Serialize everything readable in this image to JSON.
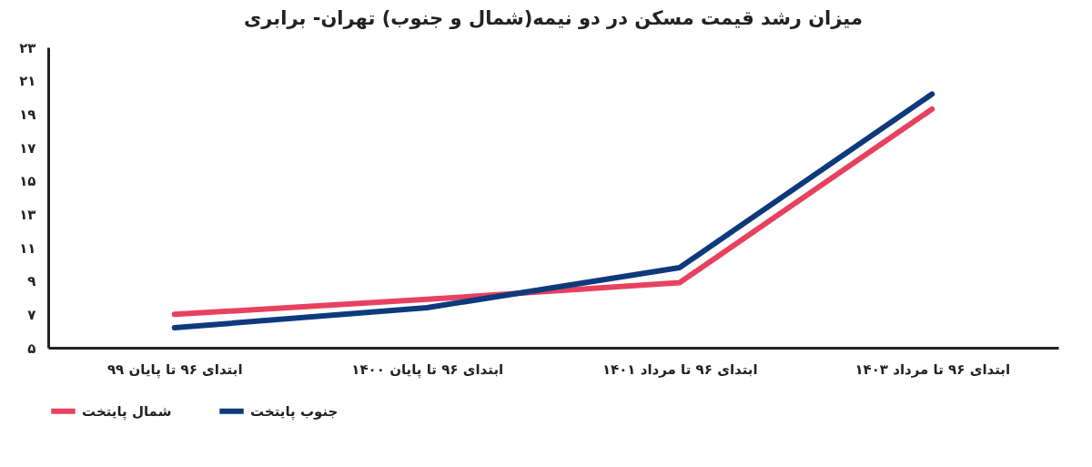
{
  "chart_data": {
    "type": "line",
    "title": "میزان رشد قیمت مسکن در دو نیمه(شمال و جنوب)  تهران- برابری",
    "categories": [
      "ابتدای ۹۶ تا پایان ۹۹",
      "ابتدای ۹۶ تا پایان ۱۴۰۰",
      "ابتدای ۹۶ تا مرداد ۱۴۰۱",
      "ابتدای ۹۶ تا مرداد ۱۴۰۳"
    ],
    "series": [
      {
        "name": "شمال پایتخت",
        "color": "#e8415f",
        "values": [
          7.0,
          7.9,
          8.9,
          19.3
        ]
      },
      {
        "name": "جنوب پایتخت",
        "color": "#0d3a7c",
        "values": [
          6.2,
          7.4,
          9.8,
          20.2
        ]
      }
    ],
    "ylim": [
      5,
      23
    ],
    "yticks": [
      {
        "value": 5,
        "label": "۵"
      },
      {
        "value": 7,
        "label": "۷"
      },
      {
        "value": 9,
        "label": "۹"
      },
      {
        "value": 11,
        "label": "۱۱"
      },
      {
        "value": 13,
        "label": "۱۳"
      },
      {
        "value": 15,
        "label": "۱۵"
      },
      {
        "value": 17,
        "label": "۱۷"
      },
      {
        "value": 19,
        "label": "۱۹"
      },
      {
        "value": 21,
        "label": "۲۱"
      },
      {
        "value": 23,
        "label": "۲۳"
      }
    ],
    "grid": false,
    "legend": "bottom",
    "marker": "none",
    "line_style": "solid"
  }
}
